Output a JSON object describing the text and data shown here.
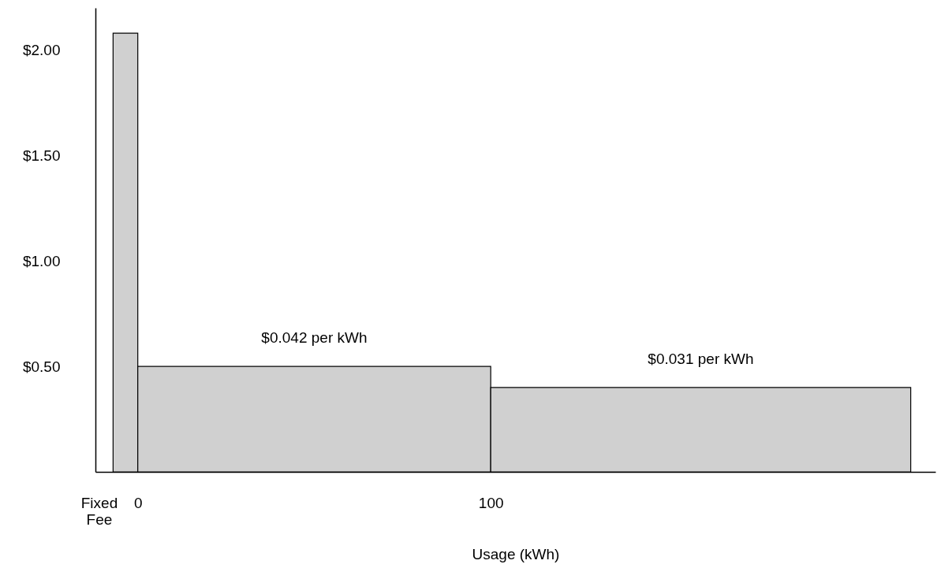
{
  "chart_data": {
    "type": "histogram",
    "xlabel": "Usage (kWh)",
    "bins": [
      -7,
      0,
      100,
      219
    ],
    "values": [
      2.08,
      0.5,
      0.4
    ],
    "color": "#d0d0d0",
    "xlim": [
      -12,
      226
    ],
    "xticks": [
      {
        "value": -11,
        "label": "Fixed Fee"
      },
      0,
      100
    ],
    "ylim": [
      0,
      2.2
    ],
    "yticks": [
      {
        "value": 0.5,
        "label": "$0.50"
      },
      {
        "value": 1,
        "label": "$1.00"
      },
      {
        "value": 1.5,
        "label": "$1.50"
      },
      {
        "value": 2,
        "label": "$2.00"
      }
    ],
    "annotations": [
      "$0.042 per kWh",
      "$0.031 per kWh"
    ],
    "grid": false
  }
}
